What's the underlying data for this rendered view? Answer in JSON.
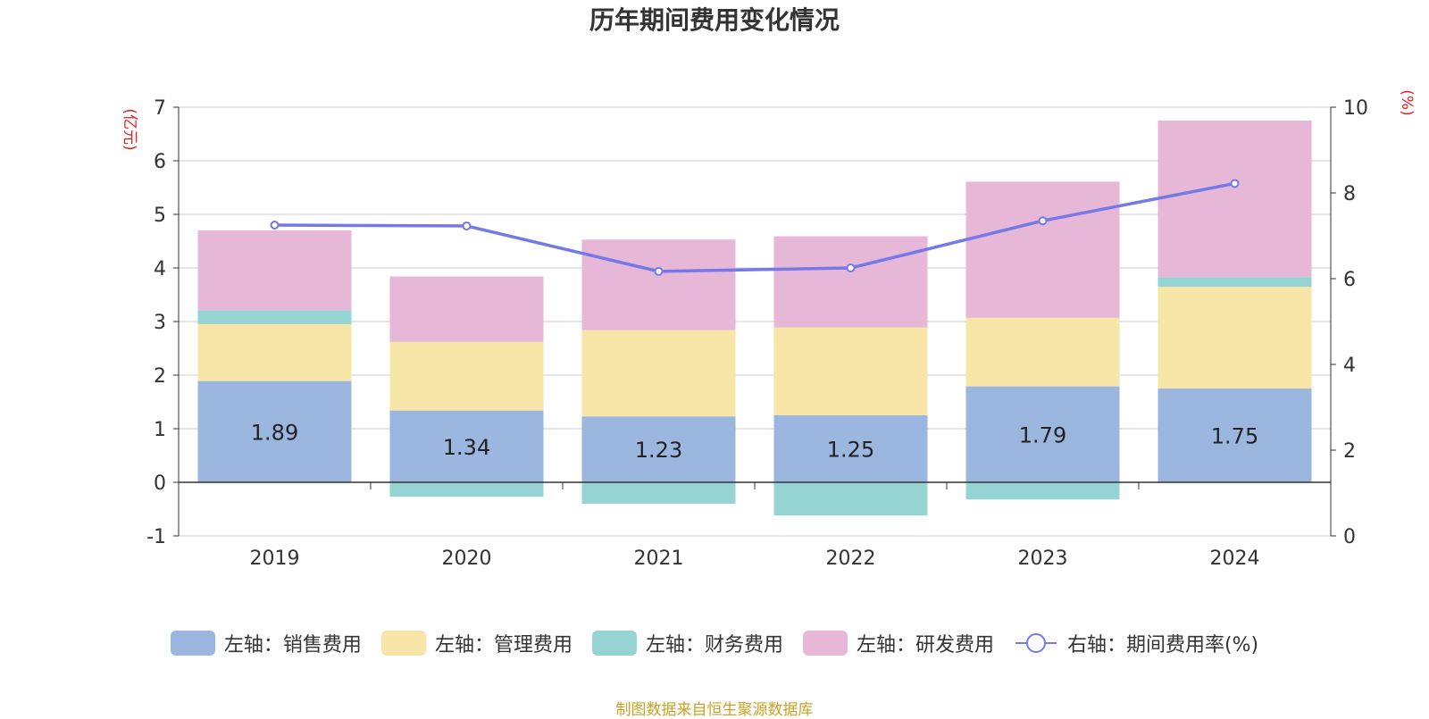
{
  "chart_data": {
    "type": "bar",
    "title": "历年期间费用变化情况",
    "categories": [
      "2019",
      "2020",
      "2021",
      "2022",
      "2023",
      "2024"
    ],
    "left_axis": {
      "unit_label": "(亿元)",
      "ylim": [
        -1,
        7
      ],
      "ticks": [
        -1,
        0,
        1,
        2,
        3,
        4,
        5,
        6,
        7
      ]
    },
    "right_axis": {
      "unit_label": "(%)",
      "ylim": [
        0,
        10
      ],
      "ticks": [
        0,
        2,
        4,
        6,
        8,
        10
      ]
    },
    "grid": true,
    "legend_position": "bottom",
    "series": [
      {
        "name": "左轴：销售费用",
        "type": "bar",
        "axis": "left",
        "color": "#9bb7e0",
        "values": [
          1.89,
          1.34,
          1.23,
          1.25,
          1.79,
          1.75
        ],
        "show_labels": true
      },
      {
        "name": "左轴：管理费用",
        "type": "bar",
        "axis": "left",
        "color": "#f7e6a7",
        "values": [
          1.06,
          1.28,
          1.61,
          1.64,
          1.28,
          1.9
        ]
      },
      {
        "name": "左轴：财务费用",
        "type": "bar",
        "axis": "left",
        "color": "#96d4d4",
        "values": [
          0.26,
          -0.27,
          -0.4,
          -0.62,
          -0.32,
          0.18
        ]
      },
      {
        "name": "左轴：研发费用",
        "type": "bar",
        "axis": "left",
        "color": "#e7b7d8",
        "values": [
          1.49,
          1.22,
          1.69,
          1.7,
          2.54,
          2.92
        ]
      },
      {
        "name": "右轴：期间费用率(%)",
        "type": "line",
        "axis": "right",
        "color": "#7479e8",
        "values": [
          7.25,
          7.23,
          6.17,
          6.25,
          7.35,
          8.22
        ]
      }
    ]
  },
  "source_text": "制图数据来自恒生聚源数据库"
}
